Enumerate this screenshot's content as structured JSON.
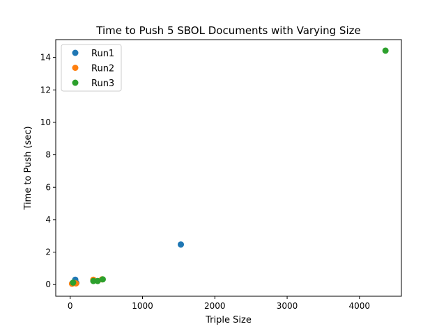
{
  "chart_data": {
    "type": "scatter",
    "title": "Time to Push 5 SBOL Documents with Varying Size",
    "xlabel": "Triple Size",
    "ylabel": "Time to Push (sec)",
    "xlim": [
      -200,
      4580
    ],
    "ylim": [
      -0.72,
      15.1
    ],
    "xticks": [
      0,
      1000,
      2000,
      3000,
      4000
    ],
    "yticks": [
      0,
      2,
      4,
      6,
      8,
      10,
      12,
      14
    ],
    "grid": false,
    "legend": "top-left",
    "series": [
      {
        "name": "Run1",
        "color": "#1f77b4",
        "points": [
          [
            30,
            0.08
          ],
          [
            60,
            0.12
          ],
          [
            70,
            0.3
          ],
          [
            85,
            0.1
          ],
          [
            1530,
            2.47
          ]
        ]
      },
      {
        "name": "Run2",
        "color": "#ff7f0e",
        "points": [
          [
            25,
            0.05
          ],
          [
            50,
            0.1
          ],
          [
            80,
            0.07
          ],
          [
            320,
            0.3
          ],
          [
            440,
            0.32
          ]
        ]
      },
      {
        "name": "Run3",
        "color": "#2ca02c",
        "points": [
          [
            40,
            0.12
          ],
          [
            320,
            0.22
          ],
          [
            380,
            0.22
          ],
          [
            450,
            0.32
          ],
          [
            4360,
            14.42
          ]
        ]
      }
    ]
  }
}
